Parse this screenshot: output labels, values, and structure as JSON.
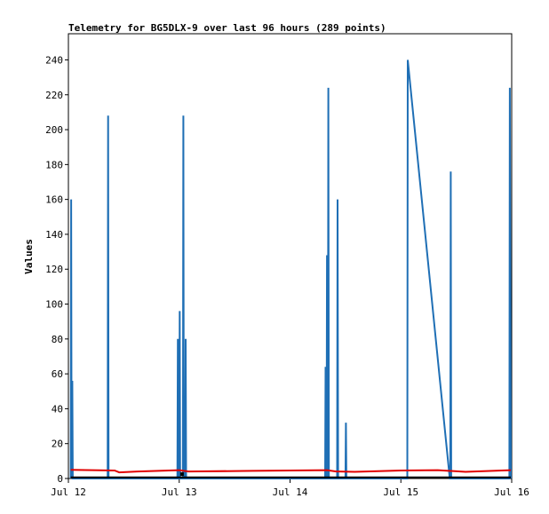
{
  "chart_data": {
    "type": "line",
    "title": "Telemetry for BG5DLX-9 over last 96 hours (289 points)",
    "ylabel": "Values",
    "xlabel": "",
    "ylim": [
      0,
      255
    ],
    "xlim_hours": [
      0,
      96
    ],
    "x_ticks": [
      {
        "label": "Jul 12",
        "hour": 0
      },
      {
        "label": "Jul 13",
        "hour": 24
      },
      {
        "label": "Jul 14",
        "hour": 48
      },
      {
        "label": "Jul 15",
        "hour": 72
      },
      {
        "label": "Jul 16",
        "hour": 96
      }
    ],
    "y_ticks": [
      0,
      20,
      40,
      60,
      80,
      100,
      120,
      140,
      160,
      180,
      200,
      220,
      240
    ],
    "grid": false,
    "series": [
      {
        "color": "#1f6fb5",
        "points": [
          [
            0.5,
            0
          ],
          [
            0.6,
            160
          ],
          [
            0.7,
            0
          ],
          [
            0.85,
            56
          ],
          [
            0.95,
            0
          ],
          [
            8.5,
            0
          ],
          [
            8.6,
            208
          ],
          [
            8.7,
            0
          ],
          [
            23.6,
            0
          ],
          [
            23.7,
            80
          ],
          [
            23.8,
            0
          ],
          [
            24.0,
            0
          ],
          [
            24.1,
            96
          ],
          [
            24.2,
            0
          ],
          [
            24.8,
            0
          ],
          [
            24.9,
            208
          ],
          [
            25.0,
            0
          ],
          [
            25.3,
            0
          ],
          [
            25.4,
            80
          ],
          [
            25.5,
            0
          ],
          [
            55.6,
            0
          ],
          [
            55.7,
            64
          ],
          [
            55.8,
            0
          ],
          [
            55.9,
            0
          ],
          [
            56.0,
            128
          ],
          [
            56.1,
            0
          ],
          [
            56.2,
            0
          ],
          [
            56.3,
            224
          ],
          [
            56.4,
            0
          ],
          [
            58.2,
            0
          ],
          [
            58.3,
            160
          ],
          [
            58.4,
            0
          ],
          [
            60.0,
            0
          ],
          [
            60.1,
            32
          ],
          [
            60.2,
            0
          ],
          [
            73.4,
            0
          ],
          [
            73.5,
            240
          ],
          [
            82.6,
            0
          ],
          [
            82.7,
            0
          ],
          [
            82.8,
            176
          ],
          [
            82.9,
            0
          ],
          [
            95.5,
            0
          ],
          [
            95.6,
            224
          ],
          [
            95.8,
            0
          ]
        ]
      },
      {
        "color": "#e00000",
        "points": [
          [
            0.5,
            5
          ],
          [
            10,
            4.6
          ],
          [
            11,
            3.5
          ],
          [
            15,
            4
          ],
          [
            24,
            4.8
          ],
          [
            26,
            4
          ],
          [
            40,
            4.4
          ],
          [
            56,
            4.8
          ],
          [
            58,
            4
          ],
          [
            62,
            3.8
          ],
          [
            72,
            4.6
          ],
          [
            80,
            4.8
          ],
          [
            86,
            3.8
          ],
          [
            95.8,
            4.8
          ]
        ]
      },
      {
        "color": "#000000",
        "points": [
          [
            0.5,
            0.6
          ],
          [
            95.8,
            0.6
          ]
        ]
      }
    ],
    "markers": [
      {
        "color": "#000000",
        "hour": 24.6,
        "value": 2
      }
    ]
  }
}
